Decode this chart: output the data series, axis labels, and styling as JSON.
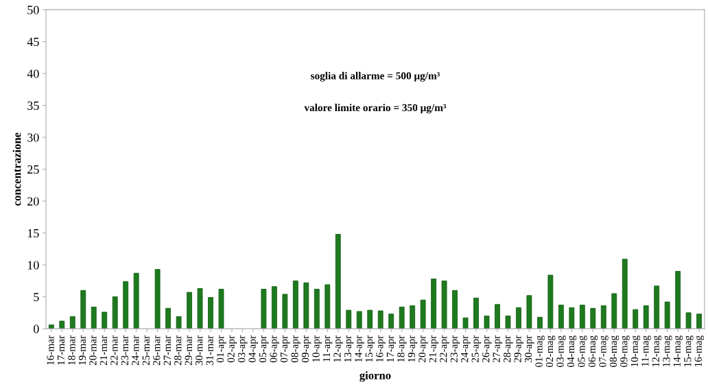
{
  "chart_data": {
    "type": "bar",
    "xlabel": "giorno",
    "ylabel": "concentrazione",
    "annotations": [
      "soglia di allarme = 500 μg/m³",
      "valore limite orario = 350 μg/m³"
    ],
    "categories": [
      "16-mar",
      "17-mar",
      "18-mar",
      "19-mar",
      "20-mar",
      "21-mar",
      "22-mar",
      "23-mar",
      "24-mar",
      "25-mar",
      "26-mar",
      "27-mar",
      "28-mar",
      "29-mar",
      "30-mar",
      "31-mar",
      "01-apr",
      "02-apr",
      "03-apr",
      "04-apr",
      "05-apr",
      "06-apr",
      "07-apr",
      "08-apr",
      "09-apr",
      "10-apr",
      "11-apr",
      "12-apr",
      "13-apr",
      "14-apr",
      "15-apr",
      "16-apr",
      "17-apr",
      "18-apr",
      "19-apr",
      "20-apr",
      "21-apr",
      "22-apr",
      "23-apr",
      "24-apr",
      "25-apr",
      "26-apr",
      "27-apr",
      "28-apr",
      "29-apr",
      "30-apr",
      "01-mag",
      "02-mag",
      "03-mag",
      "04-mag",
      "05-mag",
      "06-mag",
      "07-mag",
      "08-mag",
      "09-mag",
      "10-mag",
      "11-mag",
      "12-mag",
      "13-mag",
      "14-mag",
      "15-mag",
      "16-mag"
    ],
    "values": [
      0.6,
      1.2,
      1.9,
      6.0,
      3.4,
      2.6,
      5.0,
      7.4,
      8.7,
      null,
      9.3,
      3.2,
      1.9,
      5.7,
      6.3,
      4.9,
      6.2,
      null,
      null,
      null,
      6.2,
      6.6,
      5.4,
      7.5,
      7.2,
      6.2,
      6.9,
      14.8,
      2.9,
      2.7,
      2.9,
      2.8,
      2.3,
      3.4,
      3.6,
      4.5,
      7.8,
      7.5,
      6.0,
      1.7,
      4.8,
      2.0,
      3.8,
      2.0,
      3.3,
      5.2,
      1.8,
      8.4,
      3.7,
      3.3,
      3.7,
      3.2,
      3.6,
      5.5,
      10.9,
      3.0,
      3.6,
      6.7,
      4.2,
      9.0,
      2.5,
      2.3
    ],
    "color": "#1e7a1e",
    "ylim": [
      0,
      50
    ],
    "yticks": [
      0,
      5,
      10,
      15,
      20,
      25,
      30,
      35,
      40,
      45,
      50
    ],
    "grid": false,
    "legend": false
  }
}
